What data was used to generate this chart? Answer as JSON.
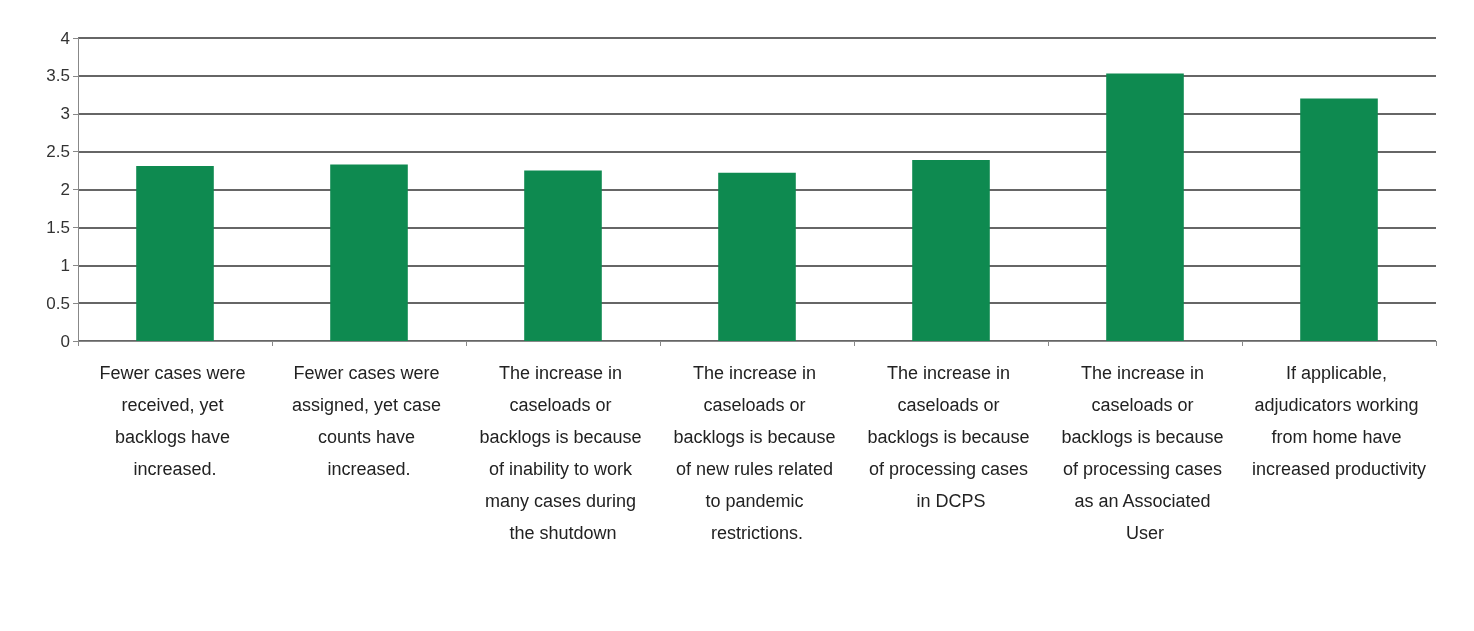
{
  "chart_data": {
    "type": "bar",
    "categories": [
      "Fewer cases were received, yet backlogs have increased.",
      "Fewer cases were assigned, yet case counts have increased.",
      "The increase in caseloads or backlogs is because of inability to work many cases during the shutdown",
      "The increase in caseloads or backlogs is because of new rules related to pandemic restrictions.",
      "The increase in caseloads or backlogs is because of processing cases in DCPS",
      "The increase in caseloads or backlogs is because of processing cases as an Associated User",
      "If applicable, adjudicators working from home have increased productivity"
    ],
    "values": [
      2.31,
      2.33,
      2.25,
      2.22,
      2.39,
      3.53,
      3.2
    ],
    "color": "#0e8a50",
    "ylim": [
      0,
      4
    ],
    "yticks": [
      0,
      0.5,
      1,
      1.5,
      2,
      2.5,
      3,
      3.5,
      4
    ],
    "grid": "y"
  }
}
